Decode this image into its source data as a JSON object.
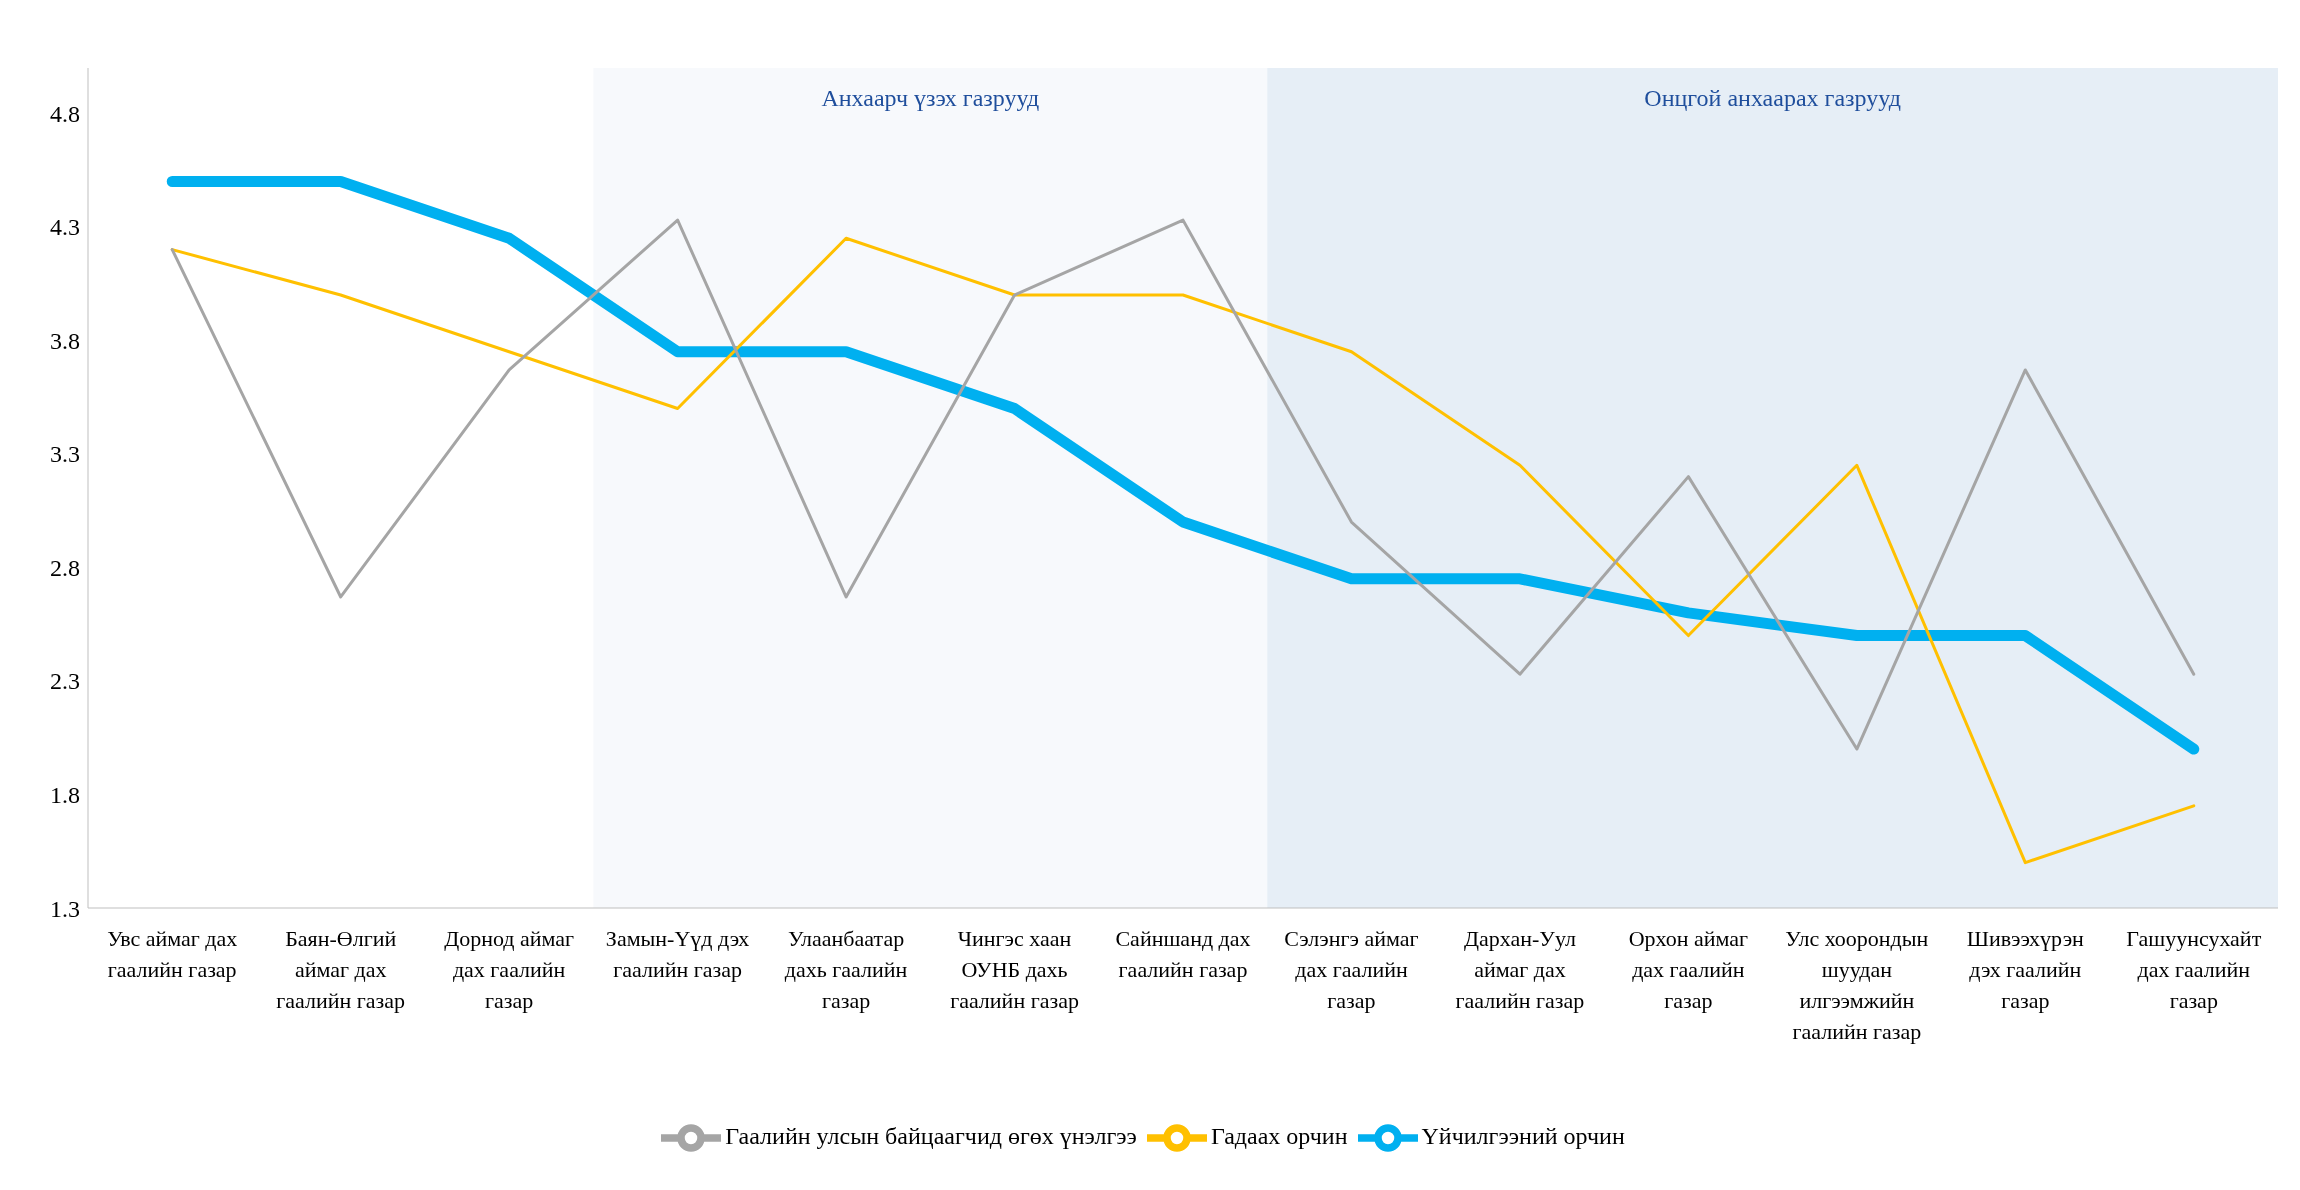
{
  "chart_data": {
    "type": "line",
    "categories": [
      "Увс аймаг дах гаалийн газар",
      "Баян-Өлгий аймаг дах гаалийн газар",
      "Дорнод аймаг дах гаалийн газар",
      "Замын-Үүд дэх гаалийн газар",
      "Улаанбаатар дахь гаалийн газар",
      "Чингэс хаан ОУНБ дахь гаалийн газар",
      "Сайншанд дах гаалийн газар",
      "Сэлэнгэ аймаг дах гаалийн газар",
      "Дархан-Уул аймаг дах гаалийн газар",
      "Орхон аймаг дах гаалийн газар",
      "Улс хоорондын шуудан илгээмжийн гаалийн газар",
      "Шивээхүрэн дэх гаалийн газар",
      "Гашуунсухайт дах гаалийн газар"
    ],
    "series": [
      {
        "name": "Үйчилгээний орчин",
        "color": "#00b0f0",
        "values": [
          4.5,
          4.5,
          4.25,
          3.75,
          3.75,
          3.5,
          3.0,
          2.75,
          2.75,
          2.6,
          2.5,
          2.5,
          2.0
        ]
      },
      {
        "name": "Гадаах орчин",
        "color": "#ffc000",
        "values": [
          4.2,
          4.0,
          3.75,
          3.5,
          4.25,
          4.0,
          4.0,
          3.75,
          3.25,
          2.5,
          3.25,
          1.5,
          1.75
        ]
      },
      {
        "name": "Гаалийн улсын байцаагчид өгөх үнэлгээ",
        "color": "#a5a5a5",
        "values": [
          4.2,
          2.67,
          3.67,
          4.33,
          2.67,
          4.0,
          4.33,
          3.0,
          2.33,
          3.2,
          2.0,
          3.67,
          2.33
        ]
      }
    ],
    "ylim": [
      1.3,
      5.0
    ],
    "yticks": [
      1.3,
      1.8,
      2.3,
      2.8,
      3.3,
      3.8,
      4.3,
      4.8
    ],
    "bands": [
      {
        "axis": "x",
        "from": "Замын-Үүд дэх гаалийн газар",
        "to": "Сайншанд дах гаалийн газар",
        "label": "Анхаарч үзэх газрууд",
        "color": "#f7f9fc"
      },
      {
        "axis": "x",
        "from": "Сэлэнгэ аймаг дах гаалийн газар",
        "to": "Гашуунсухайт дах гаалийн газар",
        "label": "Онцгой анхаарах газрууд",
        "color": "#e6eef6"
      }
    ],
    "grid": false,
    "legend": "bottom",
    "marker": "none",
    "line_style": "solid"
  }
}
